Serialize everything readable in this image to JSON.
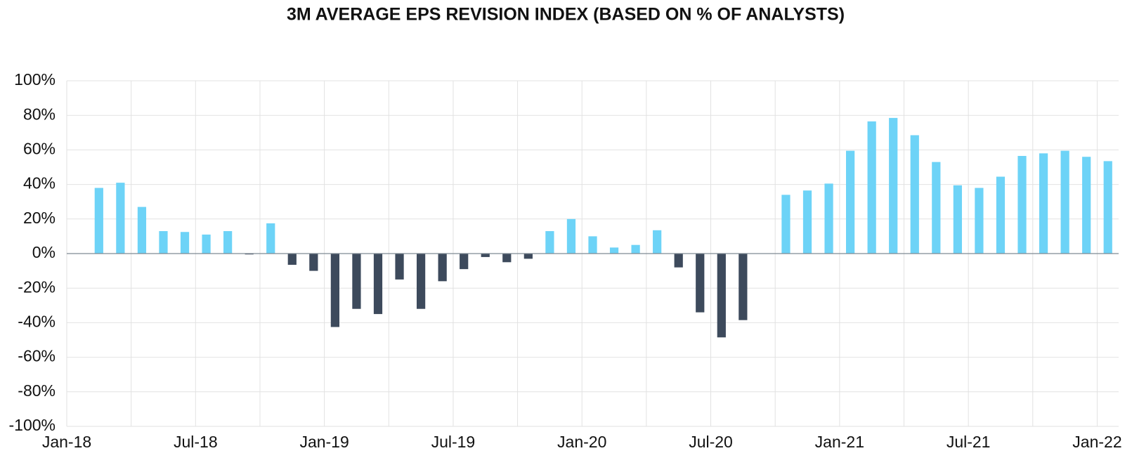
{
  "chart_data": {
    "type": "bar",
    "title": "3M AVERAGE EPS REVISION INDEX (BASED ON % OF ANALYSTS)",
    "x": [
      1.5,
      2.5,
      3.5,
      4.5,
      5.5,
      6.5,
      7.5,
      8.5,
      9.5,
      10.5,
      11.5,
      12.5,
      13.5,
      14.5,
      15.5,
      16.5,
      17.5,
      18.5,
      19.5,
      20.5,
      21.5,
      22.5,
      23.5,
      24.5,
      25.5,
      26.5,
      27.5,
      28.5,
      29.5,
      30.5,
      31.5,
      32.5,
      33.5,
      34.5,
      35.5,
      36.5,
      37.5,
      38.5,
      39.5,
      40.5,
      41.5,
      42.5,
      43.5,
      44.5,
      45.5,
      46.5,
      47.5,
      48.5
    ],
    "values": [
      38,
      41,
      27,
      13,
      12.5,
      11,
      13,
      -0.5,
      17.5,
      -6.5,
      -10,
      -42.5,
      -32,
      -35,
      -15,
      -32,
      -16,
      -9,
      -2,
      -5,
      -3,
      13,
      20,
      10,
      3.5,
      5,
      13.5,
      -8,
      -34,
      -48.5,
      -38.5,
      null,
      34,
      36.5,
      40.5,
      59.5,
      76.5,
      78.5,
      68.5,
      53,
      39.5,
      38,
      44.5,
      56.5,
      58,
      59.5,
      56,
      53.5
    ],
    "positive_color": "#6dd3f7",
    "negative_color": "#3d4a5c",
    "xlim": [
      0,
      49
    ],
    "xticks": [
      {
        "value": 0,
        "label": "Jan-18"
      },
      {
        "value": 6,
        "label": "Jul-18"
      },
      {
        "value": 12,
        "label": "Jan-19"
      },
      {
        "value": 18,
        "label": "Jul-19"
      },
      {
        "value": 24,
        "label": "Jan-20"
      },
      {
        "value": 30,
        "label": "Jul-20"
      },
      {
        "value": 36,
        "label": "Jan-21"
      },
      {
        "value": 42,
        "label": "Jul-21"
      },
      {
        "value": 48,
        "label": "Jan-22"
      }
    ],
    "x_minor_ticks": [
      3,
      9,
      15,
      21,
      27,
      33,
      39,
      45
    ],
    "ylim": [
      -100,
      100
    ],
    "yticks": [
      {
        "value": -100,
        "label": "-100%"
      },
      {
        "value": -80,
        "label": "-80%"
      },
      {
        "value": -60,
        "label": "-60%"
      },
      {
        "value": -40,
        "label": "-40%"
      },
      {
        "value": -20,
        "label": "-20%"
      },
      {
        "value": 0,
        "label": "0%"
      },
      {
        "value": 20,
        "label": "20%"
      },
      {
        "value": 40,
        "label": "40%"
      },
      {
        "value": 60,
        "label": "60%"
      },
      {
        "value": 80,
        "label": "80%"
      },
      {
        "value": 100,
        "label": "100%"
      }
    ],
    "grid": true
  }
}
